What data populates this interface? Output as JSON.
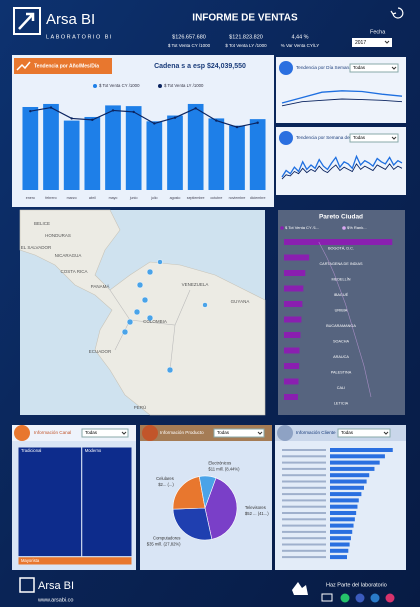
{
  "header": {
    "brand": "Arsa BI",
    "subtitle": "LABORATORIO BI",
    "title": "INFORME DE VENTAS",
    "kpis": [
      {
        "value": "$126.657.680",
        "label": "$ Tot Venta CY /1000"
      },
      {
        "value": "$121.823.820",
        "label": "$ Tot Venta LY /1000"
      },
      {
        "value": "4,44 %",
        "label": "% Var Venta CY/LY"
      }
    ],
    "filter_label": "Fecha",
    "filter_value": "2017"
  },
  "map": {
    "labels": [
      "BELICE",
      "HONDURAS",
      "EL SALVADOR",
      "NICARAGUA",
      "COSTA RICA",
      "PANAMÁ",
      "VENEZUELA",
      "GUYANA",
      "COLOMBIA",
      "ECUADOR",
      "PERÚ"
    ]
  },
  "footer": {
    "brand": "Arsa BI",
    "url": "www.arsabi.co",
    "cta": "Haz Parte del laboratorio"
  },
  "chart_data": [
    {
      "type": "bar",
      "title": "Tendencia por Año/Mes/Día",
      "ticker": "Cadena s a esp $24,039,550",
      "categories": [
        "enero",
        "febrero",
        "marzo",
        "abril",
        "mayo",
        "junio",
        "julio",
        "agosto",
        "septiembre",
        "octubre",
        "noviembre",
        "diciembre"
      ],
      "series": [
        {
          "name": "$ Tot Venta CY /1000",
          "color": "#1e7fe8",
          "values": [
            11480000,
            11900000,
            9600000,
            10100000,
            11700000,
            11600000,
            9500000,
            10300000,
            11900000,
            9900000,
            8900000,
            9800000
          ]
        },
        {
          "name": "$ Tot Venta LY /1000",
          "color": "#0b2460",
          "type": "line",
          "values": [
            10900000,
            11400000,
            9900000,
            9700000,
            11000000,
            10800000,
            9200000,
            10000000,
            11300000,
            9600000,
            8700000,
            9300000
          ]
        }
      ],
      "ylim": [
        0,
        13000000
      ]
    },
    {
      "type": "line",
      "title": "Tendencia por Día Semana",
      "filter": "Todas",
      "categories": [
        null,
        null,
        null,
        null,
        null,
        null,
        null
      ],
      "series": [
        {
          "color": "#1e6fe0",
          "values": [
            520,
            600,
            680,
            700,
            690,
            650,
            620
          ]
        },
        {
          "color": "#0b2460",
          "values": [
            480,
            540,
            560,
            580,
            570,
            560,
            540
          ]
        }
      ],
      "ylim": [
        300,
        800
      ]
    },
    {
      "type": "line",
      "title": "Tendencia por Semana del Año",
      "filter": "Todas",
      "series": [
        {
          "color": "#1e6fe0",
          "values": [
            120,
            180,
            150,
            210,
            170,
            260,
            190,
            230,
            200,
            280,
            220,
            190,
            250,
            300,
            210,
            260,
            240,
            200,
            310,
            230,
            270,
            250,
            220,
            290,
            260,
            240,
            300,
            230,
            270,
            250
          ]
        },
        {
          "color": "#0b2460",
          "values": [
            100,
            140,
            130,
            170,
            150,
            200,
            160,
            190,
            170,
            220,
            180,
            160,
            200,
            230,
            180,
            210,
            190,
            170,
            240,
            190,
            220,
            200,
            180,
            230,
            210,
            190,
            240,
            190,
            220,
            200
          ]
        }
      ],
      "ylim": [
        0,
        350
      ]
    },
    {
      "type": "hbar",
      "title": "Pareto Ciudad",
      "categories": [
        "BOGOTÁ, D.C.",
        "CARTAGENA DE INDIAS",
        "MEDELLÍN",
        "IBAGUÉ",
        "URIBIA",
        "BUCARAMANGA",
        "SOACHA",
        "ARAUCA",
        "PALESTINA",
        "CALI",
        "LETICIA"
      ],
      "series": [
        {
          "name": "$ Tot Venta CY /1...",
          "color": "#8a1fb0",
          "values": [
            5600000,
            1300000,
            1100000,
            1000000,
            950000,
            900000,
            850000,
            800000,
            780000,
            750000,
            720000
          ]
        },
        {
          "name": "$% Rank...",
          "color": "#d9a7f0",
          "axis": "x2",
          "values": [
            30,
            37,
            43,
            48,
            53,
            57,
            61,
            65,
            69,
            72,
            75
          ]
        }
      ],
      "xlim": [
        0,
        6000000
      ],
      "x2lim": [
        0,
        100
      ]
    },
    {
      "type": "treemap",
      "title": "Información Canal",
      "filter": "Todas",
      "categories": [
        "Tradicional",
        "Moderno",
        "Mayorista"
      ],
      "values": [
        52,
        41,
        7
      ],
      "colors": [
        "#0d2c8c",
        "#0d2c8c",
        "#e8772e"
      ]
    },
    {
      "type": "pie",
      "title": "Información Producto",
      "filter": "Todas",
      "categories": [
        "Televisores",
        "Computadores",
        "Celulares",
        "Electrónicos"
      ],
      "values": [
        41,
        27.82,
        22.74,
        8.44
      ],
      "value_labels": [
        "$52 ... (41...)",
        "$35 mill. (27,82%)",
        "$2... (...)",
        "$11 mill. (8,44%)"
      ],
      "colors": [
        "#7a3fc8",
        "#1f3fb0",
        "#e8772e",
        "#4aa3e8"
      ]
    },
    {
      "type": "hbar",
      "title": "Información Cliente",
      "filter": "Todas",
      "categories": [
        null,
        null,
        null,
        null,
        null,
        null,
        null,
        null,
        null,
        null,
        null,
        null,
        null,
        null,
        null,
        null,
        null,
        null
      ],
      "values": [
        2400000,
        2100000,
        1900000,
        1700000,
        1500000,
        1400000,
        1300000,
        1200000,
        1100000,
        1050000,
        1000000,
        950000,
        900000,
        850000,
        800000,
        750000,
        700000,
        650000
      ],
      "color": "#2a6fe0",
      "xlim": [
        0,
        2600000
      ]
    }
  ]
}
